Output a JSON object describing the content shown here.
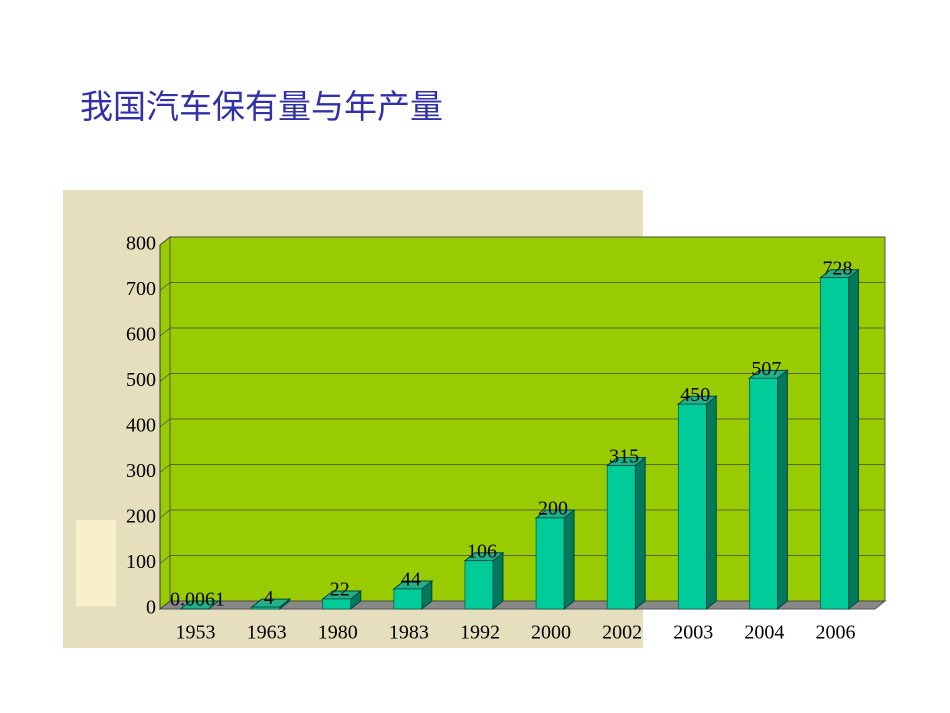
{
  "chart_data": {
    "type": "bar3d",
    "title": "我国汽车保有量与年产量",
    "categories": [
      "1953",
      "1963",
      "1980",
      "1983",
      "1992",
      "2000",
      "2002",
      "2003",
      "2004",
      "2006"
    ],
    "values": [
      0.0061,
      4,
      22,
      44,
      106,
      200,
      315,
      450,
      507,
      728
    ],
    "color": "#00cc99",
    "background": "#99cc00",
    "ylim": [
      0,
      800
    ],
    "yticks": [
      0,
      100,
      200,
      300,
      400,
      500,
      600,
      700,
      800
    ],
    "grid": true
  }
}
